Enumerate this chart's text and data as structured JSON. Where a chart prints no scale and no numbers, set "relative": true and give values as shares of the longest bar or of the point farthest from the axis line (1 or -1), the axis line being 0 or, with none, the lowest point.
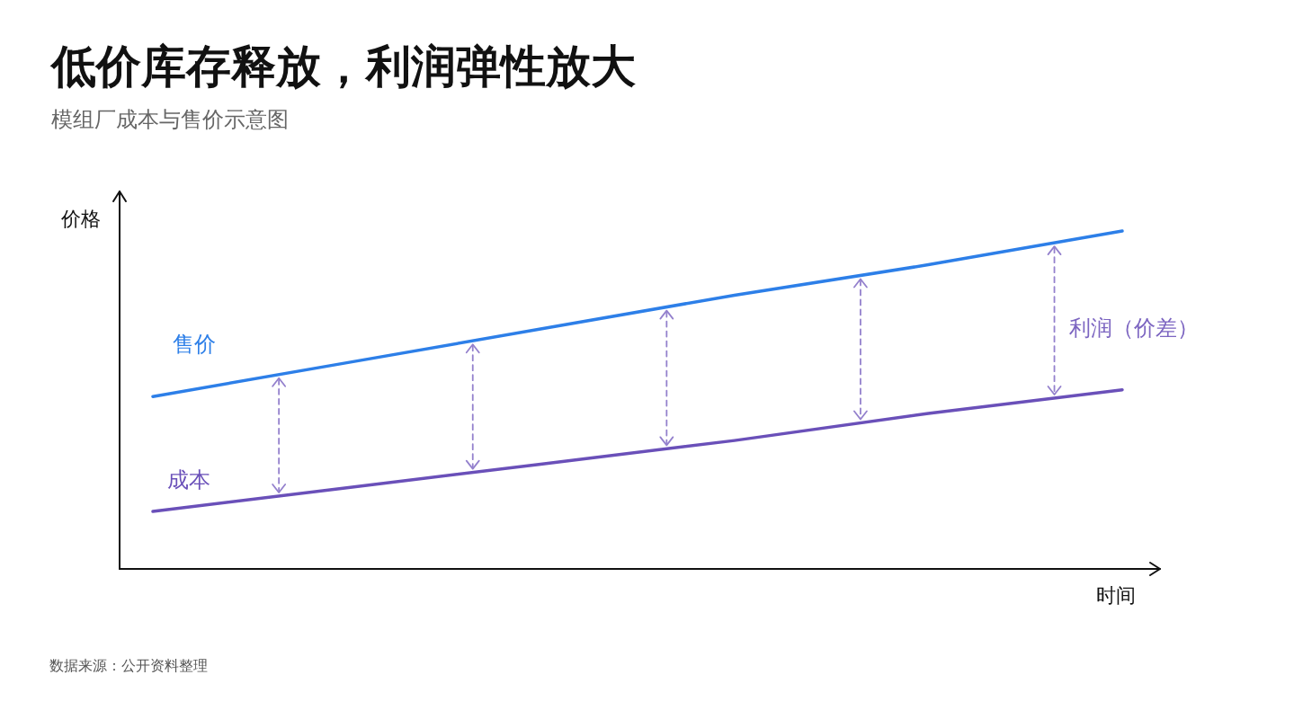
{
  "chart_data": {
    "type": "line",
    "title": "低价库存释放，利润弹性放大",
    "subtitle": "模组厂成本与售价示意图",
    "xlabel": "时间",
    "ylabel": "价格",
    "relative": true,
    "categories": [
      null,
      null,
      null,
      null,
      null,
      null
    ],
    "series": [
      {
        "name": "售价",
        "color": "#2d7fe8",
        "values": [
          0.51,
          0.61,
          0.71,
          0.81,
          0.9,
          1
        ]
      },
      {
        "name": "成本",
        "color": "#6a50b9",
        "values": [
          0.17,
          0.24,
          0.31,
          0.38,
          0.46,
          0.53
        ]
      }
    ],
    "marker": "none",
    "annotations": [
      "利润（价差）",
      "数据来源：公开资料整理"
    ]
  }
}
